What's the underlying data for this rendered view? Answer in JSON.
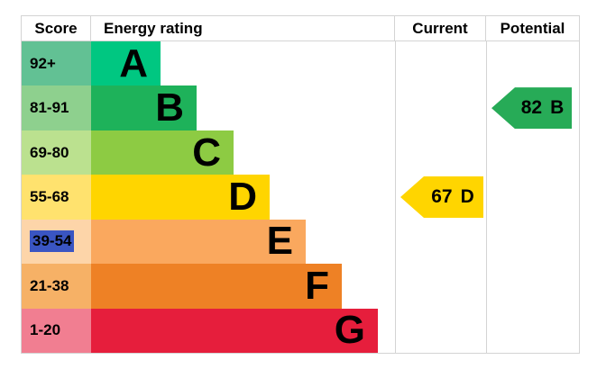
{
  "header": {
    "score": "Score",
    "energy_rating": "Energy rating",
    "current": "Current",
    "potential": "Potential"
  },
  "bands": [
    {
      "score": "92+",
      "letter": "A",
      "color": "#00c781",
      "score_bg": "#62c194"
    },
    {
      "score": "81-91",
      "letter": "B",
      "color": "#1eb25a",
      "score_bg": "#8ed08e"
    },
    {
      "score": "69-80",
      "letter": "C",
      "color": "#8dcb43",
      "score_bg": "#bbe18f"
    },
    {
      "score": "55-68",
      "letter": "D",
      "color": "#ffd500",
      "score_bg": "#ffe26e"
    },
    {
      "score": "39-54",
      "letter": "E",
      "color": "#faa85e",
      "score_bg": "#fdd5a9"
    },
    {
      "score": "21-38",
      "letter": "F",
      "color": "#ee8125",
      "score_bg": "#f6b166"
    },
    {
      "score": "1-20",
      "letter": "G",
      "color": "#e61e3c",
      "score_bg": "#f17e91"
    }
  ],
  "current": {
    "value": "67",
    "band": "D",
    "color": "#ffd500"
  },
  "potential": {
    "value": "82",
    "band": "B",
    "color": "#27ab57"
  },
  "selection": {
    "color": "#3a55c2"
  },
  "border_color": "#d4d4d4",
  "chart_data": {
    "type": "bar",
    "title": "Energy rating",
    "categories": [
      "A",
      "B",
      "C",
      "D",
      "E",
      "F",
      "G"
    ],
    "score_ranges": [
      "92+",
      "81-91",
      "69-80",
      "55-68",
      "39-54",
      "21-38",
      "1-20"
    ],
    "values": [
      77,
      117,
      158,
      198,
      238,
      278,
      318
    ],
    "band_colors": [
      "#00c781",
      "#1eb25a",
      "#8dcb43",
      "#ffd500",
      "#faa85e",
      "#ee8125",
      "#e61e3c"
    ],
    "current_rating": {
      "value": 67,
      "band": "D"
    },
    "potential_rating": {
      "value": 82,
      "band": "B"
    },
    "columns": [
      "Score",
      "Energy rating",
      "Current",
      "Potential"
    ],
    "highlighted_score_range": "39-54",
    "legend_position": "none",
    "grid": false
  }
}
